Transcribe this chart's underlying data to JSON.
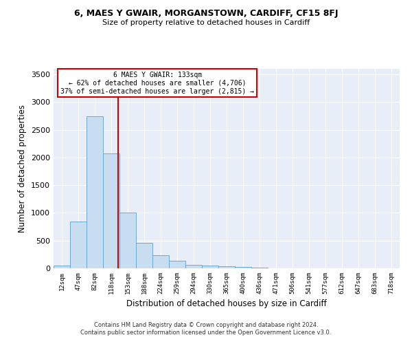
{
  "title1": "6, MAES Y GWAIR, MORGANSTOWN, CARDIFF, CF15 8FJ",
  "title2": "Size of property relative to detached houses in Cardiff",
  "xlabel": "Distribution of detached houses by size in Cardiff",
  "ylabel": "Number of detached properties",
  "bin_labels": [
    "12sqm",
    "47sqm",
    "82sqm",
    "118sqm",
    "153sqm",
    "188sqm",
    "224sqm",
    "259sqm",
    "294sqm",
    "330sqm",
    "365sqm",
    "400sqm",
    "436sqm",
    "471sqm",
    "506sqm",
    "541sqm",
    "577sqm",
    "612sqm",
    "647sqm",
    "683sqm",
    "718sqm"
  ],
  "bar_values": [
    50,
    850,
    2740,
    2075,
    1010,
    455,
    230,
    140,
    65,
    50,
    35,
    25,
    15,
    5,
    3,
    2,
    1,
    0,
    0,
    0,
    0
  ],
  "bar_color": "#c8ddf0",
  "bar_edge_color": "#6aaad4",
  "property_label": "6 MAES Y GWAIR: 133sqm",
  "annotation_line1": "← 62% of detached houses are smaller (4,706)",
  "annotation_line2": "37% of semi-detached houses are larger (2,815) →",
  "vline_color": "#cc0000",
  "ylim": [
    0,
    3600
  ],
  "yticks": [
    0,
    500,
    1000,
    1500,
    2000,
    2500,
    3000,
    3500
  ],
  "bg_color": "#e8eef8",
  "footer1": "Contains HM Land Registry data © Crown copyright and database right 2024.",
  "footer2": "Contains public sector information licensed under the Open Government Licence v3.0."
}
